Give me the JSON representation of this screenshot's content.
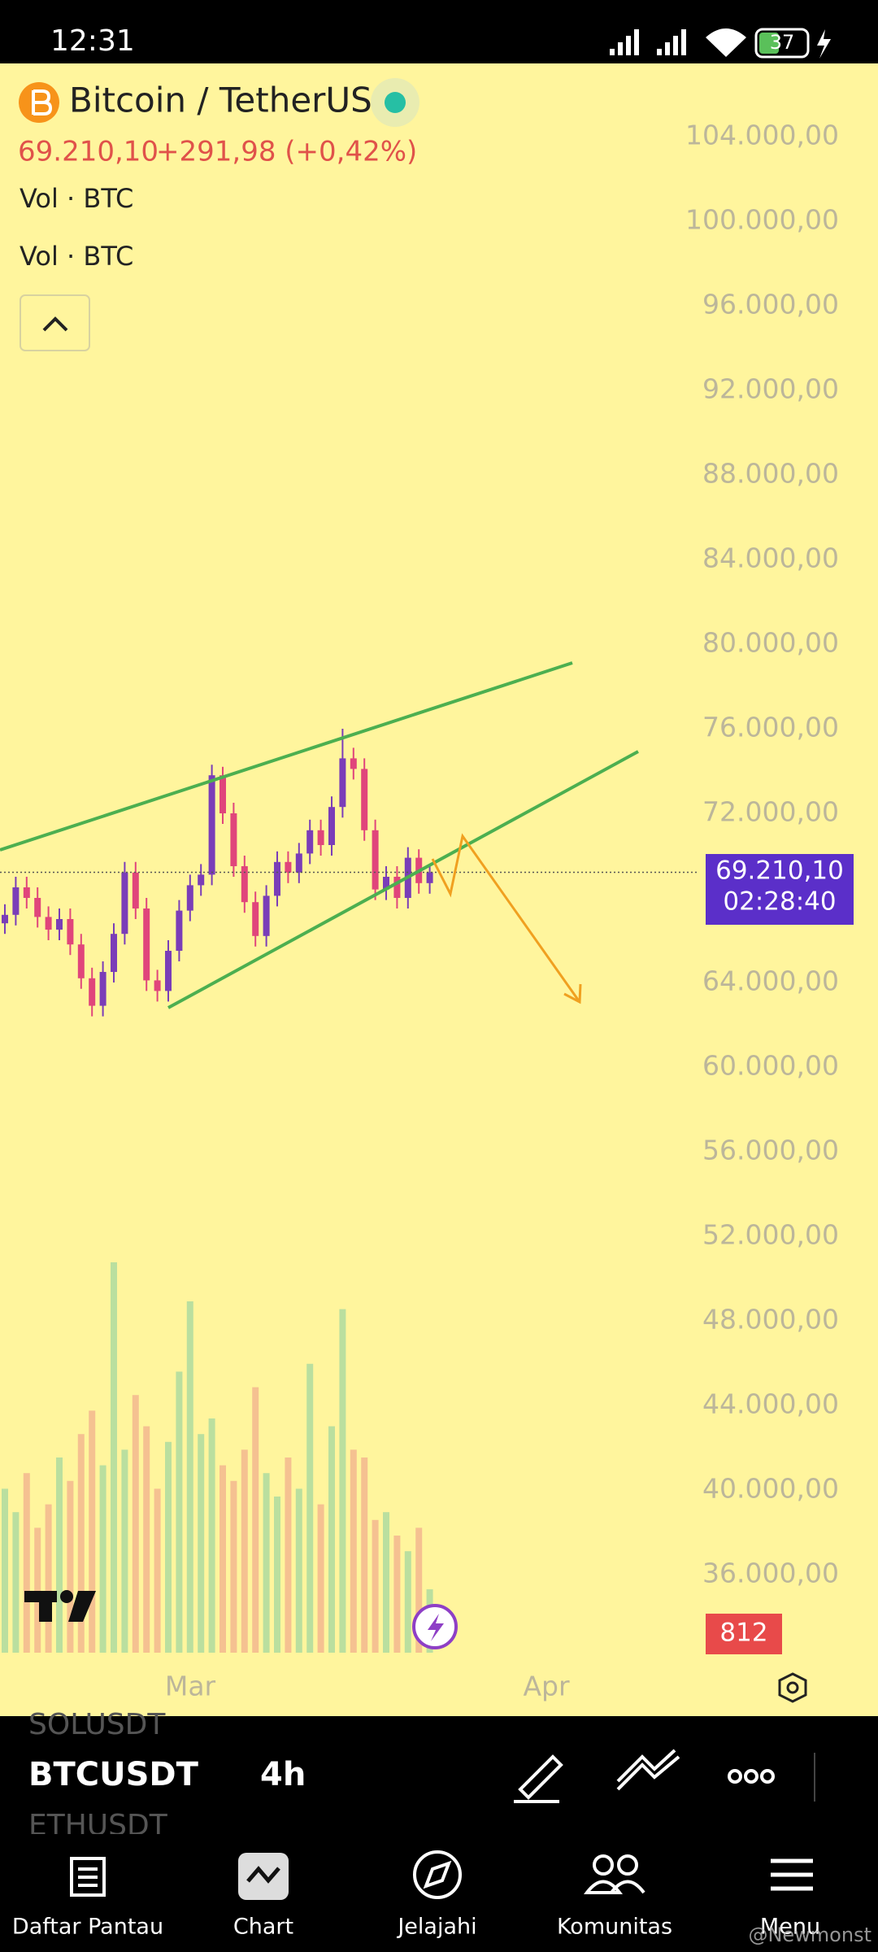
{
  "status_bar": {
    "time": "12:31",
    "battery": "37"
  },
  "header": {
    "symbol_name": "Bitcoin / TetherUS",
    "last_price": "69.210,10",
    "change": "+291,98 (+0,42%)",
    "indicators": [
      "Vol · BTC",
      "Vol · BTC"
    ]
  },
  "chart_data": {
    "type": "candlestick",
    "open": [
      66800,
      67200,
      68500,
      68000,
      67100,
      66500,
      67000,
      65800,
      64200,
      62900,
      64500,
      66300,
      69200,
      67500,
      64100,
      63600,
      65500,
      67400,
      68600,
      69100,
      73800,
      72000,
      69500,
      67800,
      66200,
      68100,
      69700,
      69200,
      70100,
      71200,
      70500,
      72300,
      74600,
      74100,
      71200,
      68400,
      69000,
      68000,
      69900,
      68700
    ],
    "high": [
      67700,
      69000,
      69000,
      68500,
      67600,
      67500,
      67500,
      66300,
      64700,
      65000,
      66800,
      69700,
      69700,
      68000,
      64600,
      66000,
      67900,
      69100,
      69600,
      74300,
      74200,
      72500,
      70000,
      68300,
      68600,
      70200,
      70200,
      70600,
      71700,
      71700,
      72800,
      76000,
      75100,
      74600,
      71700,
      69500,
      69500,
      70400,
      70300,
      69600
    ],
    "low": [
      66300,
      66700,
      67500,
      66600,
      66000,
      66000,
      65300,
      63700,
      62400,
      62400,
      64000,
      65800,
      67000,
      63600,
      63100,
      63100,
      65000,
      66900,
      68100,
      68600,
      71500,
      69000,
      67300,
      65700,
      65700,
      67600,
      68700,
      68700,
      69600,
      70000,
      70000,
      71800,
      73600,
      70700,
      67900,
      67900,
      67500,
      67500,
      68200,
      68200
    ],
    "close": [
      67200,
      68500,
      68000,
      67100,
      66500,
      67000,
      65800,
      64200,
      62900,
      64500,
      66300,
      69200,
      67500,
      64100,
      63600,
      65500,
      67400,
      68600,
      69100,
      73800,
      72000,
      69500,
      67800,
      66200,
      68100,
      69700,
      69200,
      70100,
      71200,
      70500,
      72300,
      74600,
      74100,
      71200,
      68400,
      69000,
      68000,
      69900,
      68700,
      69210.1
    ],
    "volume": [
      2100,
      1800,
      2300,
      1600,
      1900,
      2500,
      2200,
      2800,
      3100,
      2400,
      5000,
      2600,
      3300,
      2900,
      2100,
      2700,
      3600,
      4500,
      2800,
      3000,
      2400,
      2200,
      2600,
      3400,
      2300,
      2000,
      2500,
      2100,
      3700,
      1900,
      2900,
      4400,
      2600,
      2500,
      1700,
      1800,
      1500,
      1300,
      1600,
      812
    ],
    "ylim": [
      32000,
      108000
    ],
    "yticks": [
      {
        "value": 104000,
        "label": "104.000,00"
      },
      {
        "value": 100000,
        "label": "100.000,00"
      },
      {
        "value": 96000,
        "label": "96.000,00"
      },
      {
        "value": 92000,
        "label": "92.000,00"
      },
      {
        "value": 88000,
        "label": "88.000,00"
      },
      {
        "value": 84000,
        "label": "84.000,00"
      },
      {
        "value": 80000,
        "label": "80.000,00"
      },
      {
        "value": 76000,
        "label": "76.000,00"
      },
      {
        "value": 72000,
        "label": "72.000,00"
      },
      {
        "value": 64000,
        "label": "64.000,00"
      },
      {
        "value": 60000,
        "label": "60.000,00"
      },
      {
        "value": 56000,
        "label": "56.000,00"
      },
      {
        "value": 52000,
        "label": "52.000,00"
      },
      {
        "value": 48000,
        "label": "48.000,00"
      },
      {
        "value": 44000,
        "label": "44.000,00"
      },
      {
        "value": 40000,
        "label": "40.000,00"
      },
      {
        "value": 36000,
        "label": "36.000,00"
      }
    ],
    "last_price_label": "69.210,10",
    "countdown": "02:28:40",
    "last_volume_label": "812",
    "x_labels": [
      "Mar",
      "Apr"
    ]
  },
  "toolbar": {
    "symbols": [
      "SOLUSDT",
      "BTCUSDT",
      "ETHUSDT"
    ],
    "interval": "4h"
  },
  "nav": [
    "Daftar Pantau",
    "Chart",
    "Jelajahi",
    "Komunitas",
    "Menu"
  ],
  "watermark": "@Newmonst"
}
